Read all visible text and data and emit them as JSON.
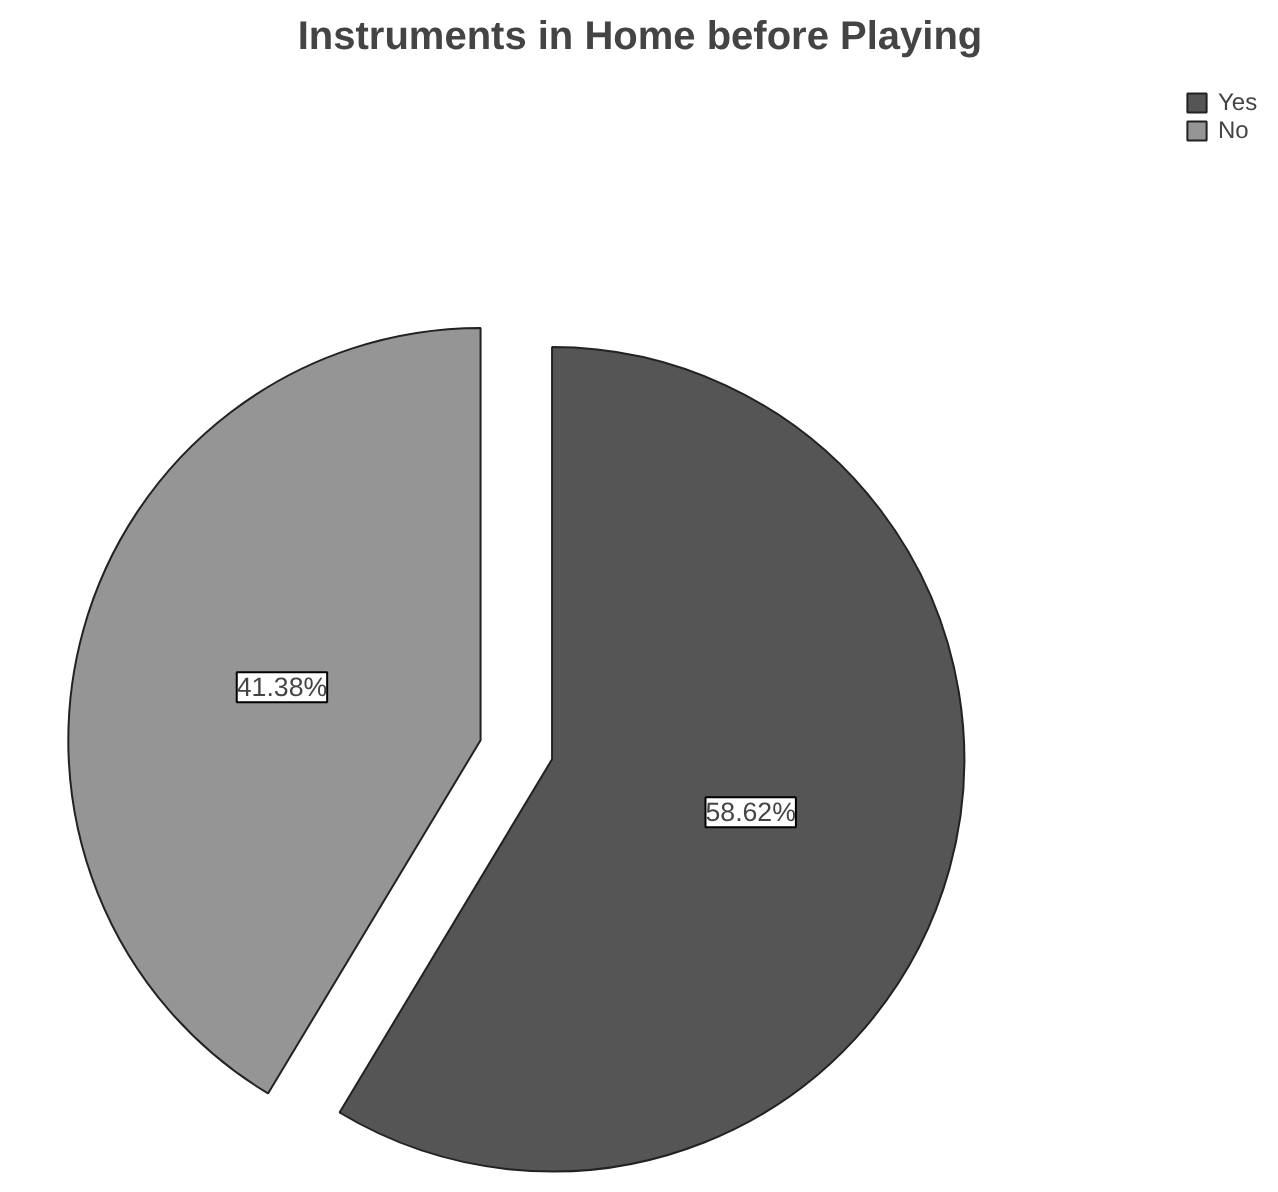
{
  "chart_data": {
    "type": "pie",
    "title": "Instruments in Home before Playing",
    "categories": [
      "Yes",
      "No"
    ],
    "values": [
      58.62,
      41.38
    ],
    "colors": [
      "#555555",
      "#959595"
    ],
    "value_labels": [
      "58.62%",
      "41.38%"
    ],
    "legend": "top right"
  }
}
